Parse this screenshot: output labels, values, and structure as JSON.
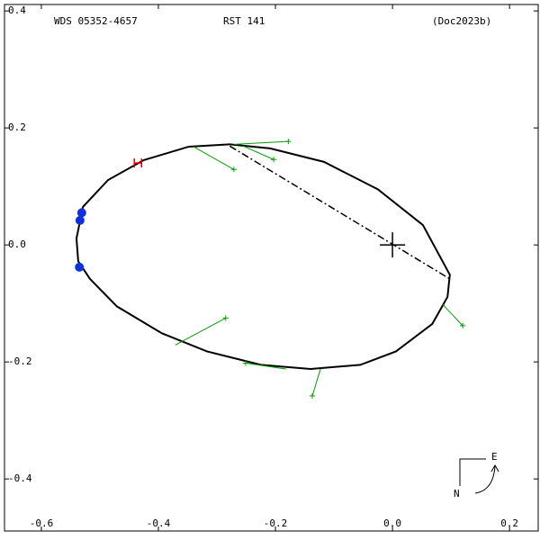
{
  "chart_data": {
    "type": "orbit",
    "title": "WDS 05352-4657",
    "subtitle": "RST 141",
    "reference": "(Doc2023b)",
    "compass": {
      "east": "E",
      "north": "N"
    },
    "xlim": [
      -0.663,
      0.249
    ],
    "ylim": [
      -0.489,
      0.411
    ],
    "xticks": [
      -0.6,
      -0.4,
      -0.2,
      {
        "value": 0,
        "label": "0.0"
      },
      0.2
    ],
    "yticks": [
      -0.4,
      -0.2,
      {
        "value": 0,
        "label": "0.0"
      },
      0.2,
      0.4
    ],
    "orbit": {
      "color": "#000000",
      "x": [
        -0.54,
        -0.529,
        -0.486,
        -0.425,
        -0.348,
        -0.278,
        -0.209,
        -0.117,
        -0.025,
        0.052,
        0.098,
        0.094,
        0.068,
        0.006,
        -0.055,
        -0.14,
        -0.225,
        -0.317,
        -0.394,
        -0.471,
        -0.517,
        -0.537
      ],
      "y": [
        0.011,
        0.065,
        0.111,
        0.145,
        0.168,
        0.172,
        0.165,
        0.142,
        0.095,
        0.034,
        -0.051,
        -0.089,
        -0.135,
        -0.182,
        -0.205,
        -0.212,
        -0.205,
        -0.182,
        -0.151,
        -0.105,
        -0.058,
        -0.028
      ]
    },
    "line_of_nodes": {
      "color": "#000000",
      "x": [
        -0.278,
        0.098
      ],
      "y": [
        0.169,
        -0.058
      ]
    },
    "primary": {
      "color": "#000000",
      "x": 0,
      "y": 0
    },
    "observations": {
      "color": "#00a000",
      "x": [
        -0.178,
        -0.203,
        -0.271,
        -0.285,
        -0.251,
        -0.137,
        0.12
      ],
      "y": [
        0.177,
        0.146,
        0.129,
        -0.125,
        -0.202,
        -0.258,
        -0.138
      ],
      "fit_x": [
        -0.271,
        -0.255,
        -0.34,
        -0.371,
        -0.182,
        -0.123,
        0.086
      ],
      "fit_y": [
        0.172,
        0.169,
        0.168,
        -0.171,
        -0.212,
        -0.212,
        -0.102
      ]
    },
    "recent": {
      "color": "#1030e0",
      "x": [
        -0.531,
        -0.534,
        -0.535
      ],
      "y": [
        0.055,
        0.042,
        -0.038
      ]
    },
    "hipparcos": {
      "color": "#e00000",
      "x": [
        -0.435
      ],
      "y": [
        0.14
      ]
    }
  }
}
